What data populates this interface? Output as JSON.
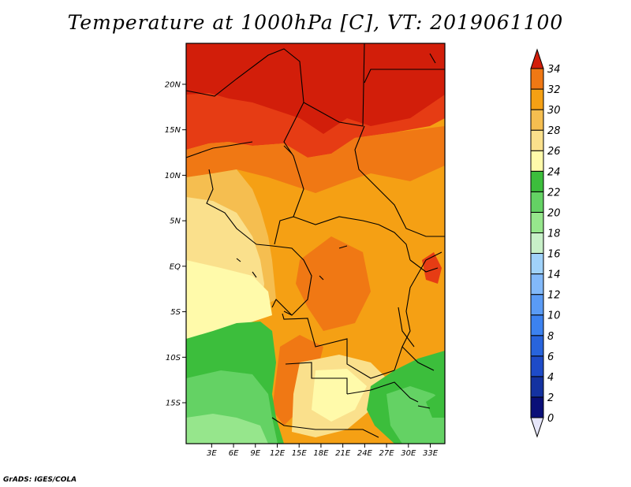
{
  "title": "Temperature at 1000hPa [C], VT: 2019061100",
  "credit": "GrADS: IGES/COLA",
  "map": {
    "lat_range": [
      -19.5,
      24.5
    ],
    "lon_range": [
      -0.5,
      35.0
    ],
    "lat_ticks": [
      {
        "value": 20,
        "label": "20N"
      },
      {
        "value": 15,
        "label": "15N"
      },
      {
        "value": 10,
        "label": "10N"
      },
      {
        "value": 5,
        "label": "5N"
      },
      {
        "value": 0,
        "label": "EQ"
      },
      {
        "value": -5,
        "label": "5S"
      },
      {
        "value": -10,
        "label": "10S"
      },
      {
        "value": -15,
        "label": "15S"
      }
    ],
    "lon_ticks": [
      {
        "value": 3,
        "label": "3E"
      },
      {
        "value": 6,
        "label": "6E"
      },
      {
        "value": 9,
        "label": "9E"
      },
      {
        "value": 12,
        "label": "12E"
      },
      {
        "value": 15,
        "label": "15E"
      },
      {
        "value": 18,
        "label": "18E"
      },
      {
        "value": 21,
        "label": "21E"
      },
      {
        "value": 24,
        "label": "24E"
      },
      {
        "value": 27,
        "label": "27E"
      },
      {
        "value": 30,
        "label": "30E"
      },
      {
        "value": 33,
        "label": "33E"
      }
    ]
  },
  "colorbar": {
    "levels": [
      "0",
      "2",
      "4",
      "6",
      "8",
      "10",
      "12",
      "14",
      "16",
      "18",
      "20",
      "22",
      "24",
      "26",
      "28",
      "30",
      "32",
      "34"
    ],
    "colors": [
      "#0a0f78",
      "#1432a0",
      "#1e4bc8",
      "#2864dc",
      "#3c82f0",
      "#5a9bf5",
      "#82b9fa",
      "#a0d2fa",
      "#c8f0c8",
      "#96e68c",
      "#64d264",
      "#3cbe3c",
      "#fffaaa",
      "#fae08c",
      "#f5be50",
      "#f5a014",
      "#f07814",
      "#e63c14",
      "#d21e0a"
    ],
    "under_color": "#e6e6fa",
    "over_color": "#d21e0a"
  }
}
